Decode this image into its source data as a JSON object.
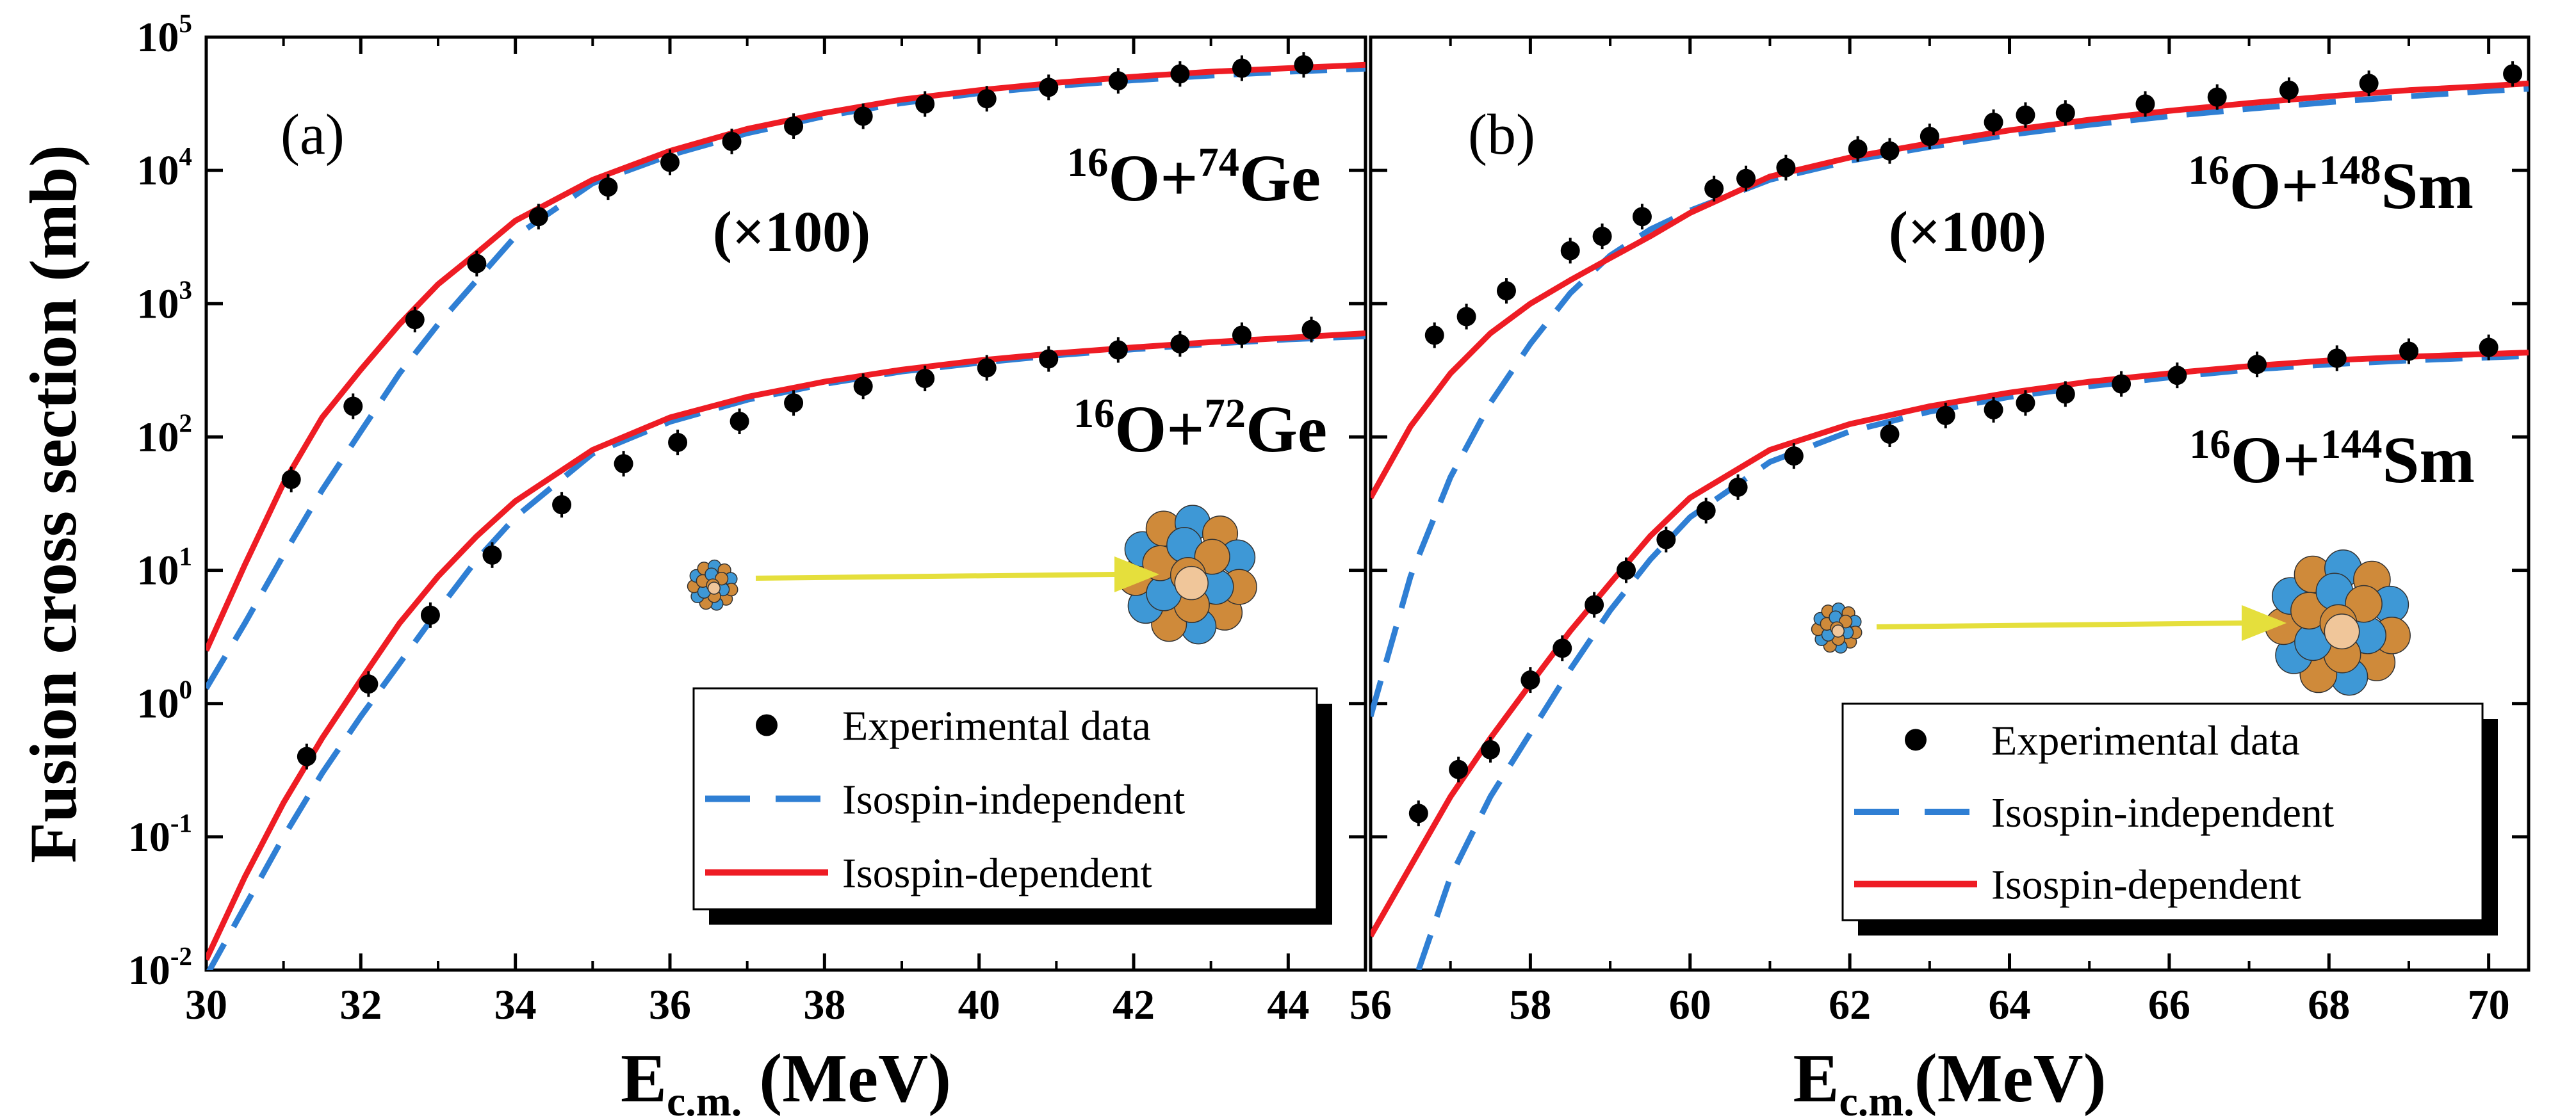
{
  "chart_data": {
    "type": "scatter",
    "ylabel": "Fusion cross section (mb)",
    "yscale": "log",
    "ylim": [
      0.01,
      100000
    ],
    "yticks": [
      {
        "base": "10",
        "exp": "-2"
      },
      {
        "base": "10",
        "exp": "-1"
      },
      {
        "base": "10",
        "exp": "0"
      },
      {
        "base": "10",
        "exp": "1"
      },
      {
        "base": "10",
        "exp": "2"
      },
      {
        "base": "10",
        "exp": "3"
      },
      {
        "base": "10",
        "exp": "4"
      },
      {
        "base": "10",
        "exp": "5"
      }
    ],
    "legend": {
      "experimental": "Experimental data",
      "independent": "Isospin-independent",
      "dependent": "Isospin-dependent"
    },
    "colors": {
      "independent": "#2f7fd4",
      "dependent": "#ee1c24",
      "data": "#000000",
      "arrow": "#e5df3c"
    },
    "panels": [
      {
        "label": "(a)",
        "xlabel_main": "E",
        "xlabel_sub": "c.m.",
        "xlabel_rest": " (MeV)",
        "xlim": [
          30,
          45
        ],
        "xticks": [
          "30",
          "32",
          "34",
          "36",
          "38",
          "40",
          "42",
          "44"
        ],
        "scale_note": "(×100)",
        "legend_position": "bottom-right",
        "reactions": [
          {
            "name_parts": [
              "16",
              "O+",
              "74",
              "Ge"
            ],
            "scaled": true,
            "experimental": {
              "x": [
                31.1,
                31.9,
                32.7,
                33.5,
                34.3,
                35.2,
                36.0,
                36.8,
                37.6,
                38.5,
                39.3,
                40.1,
                40.9,
                41.8,
                42.6,
                43.4,
                44.2
              ],
              "y": [
                48,
                170,
                760,
                2000,
                4500,
                7500,
                11500,
                16500,
                21500,
                25500,
                31500,
                34500,
                42000,
                47000,
                53000,
                58500,
                62000
              ]
            },
            "isospin_independent": {
              "x": [
                30.0,
                30.5,
                31.0,
                31.5,
                32.0,
                32.5,
                33.0,
                33.5,
                34.0,
                35.0,
                36.0,
                37.0,
                38.0,
                39.0,
                40.0,
                41.0,
                42.0,
                43.0,
                44.0,
                45.0
              ],
              "y": [
                1.3,
                4,
                13,
                40,
                110,
                300,
                700,
                1500,
                3200,
                8000,
                13000,
                19000,
                25500,
                32000,
                38000,
                43000,
                47500,
                51500,
                55000,
                58000
              ]
            },
            "isospin_dependent": {
              "x": [
                30.0,
                30.5,
                31.0,
                31.5,
                32.0,
                32.5,
                33.0,
                33.5,
                34.0,
                35.0,
                36.0,
                37.0,
                38.0,
                39.0,
                40.0,
                41.0,
                42.0,
                43.0,
                44.0,
                45.0
              ],
              "y": [
                2.5,
                11,
                45,
                140,
                320,
                700,
                1400,
                2400,
                4200,
                8500,
                14000,
                20500,
                27000,
                34000,
                40000,
                45500,
                50500,
                55000,
                58500,
                62000
              ]
            }
          },
          {
            "name_parts": [
              "16",
              "O+",
              "72",
              "Ge"
            ],
            "scaled": false,
            "experimental": {
              "x": [
                31.3,
                32.1,
                32.9,
                33.7,
                34.6,
                35.4,
                36.1,
                36.9,
                37.6,
                38.5,
                39.3,
                40.1,
                40.9,
                41.8,
                42.6,
                43.4,
                44.3
              ],
              "y": [
                0.4,
                1.4,
                4.6,
                13,
                31,
                63,
                91,
                131,
                180,
                240,
                275,
                330,
                385,
                450,
                500,
                580,
                640
              ]
            },
            "isospin_independent": {
              "x": [
                30.0,
                30.5,
                31.0,
                31.5,
                32.0,
                32.5,
                33.0,
                33.5,
                34.0,
                35.0,
                36.0,
                37.0,
                38.0,
                39.0,
                40.0,
                41.0,
                42.0,
                43.0,
                44.0,
                45.0
              ],
              "y": [
                0.009,
                0.03,
                0.1,
                0.3,
                0.8,
                2,
                5,
                12,
                25,
                75,
                130,
                190,
                250,
                310,
                360,
                410,
                455,
                500,
                540,
                570
              ]
            },
            "isospin_dependent": {
              "x": [
                30.0,
                30.5,
                31.0,
                31.5,
                32.0,
                32.5,
                33.0,
                33.5,
                34.0,
                35.0,
                36.0,
                37.0,
                38.0,
                39.0,
                40.0,
                41.0,
                42.0,
                43.0,
                44.0,
                45.0
              ],
              "y": [
                0.012,
                0.05,
                0.18,
                0.55,
                1.5,
                4,
                9,
                18,
                33,
                80,
                140,
                200,
                260,
                320,
                375,
                425,
                470,
                515,
                555,
                600
              ]
            }
          }
        ]
      },
      {
        "label": "(b)",
        "xlabel_main": "E",
        "xlabel_sub": "c.m.",
        "xlabel_rest": "(MeV)",
        "xlim": [
          56,
          70.5
        ],
        "xticks": [
          "56",
          "58",
          "60",
          "62",
          "64",
          "66",
          "68",
          "70"
        ],
        "scale_note": "(×100)",
        "legend_position": "bottom-right",
        "reactions": [
          {
            "name_parts": [
              "16",
              "O+",
              "148",
              "Sm"
            ],
            "scaled": true,
            "experimental": {
              "x": [
                56.8,
                57.2,
                57.7,
                58.5,
                58.9,
                59.4,
                60.3,
                60.7,
                61.2,
                62.1,
                62.5,
                63.0,
                63.8,
                64.2,
                64.7,
                65.7,
                66.6,
                67.5,
                68.5,
                70.3
              ],
              "y": [
                580,
                800,
                1250,
                2500,
                3200,
                4500,
                7300,
                8700,
                10500,
                14500,
                14000,
                18000,
                23000,
                26000,
                27000,
                31500,
                35500,
                40000,
                45000,
                53000
              ]
            },
            "isospin_independent": {
              "x": [
                56.0,
                56.5,
                57.0,
                57.5,
                58.0,
                58.5,
                59.0,
                59.5,
                60.0,
                61.0,
                62.0,
                63.0,
                64.0,
                65.0,
                66.0,
                67.0,
                68.0,
                69.0,
                70.0,
                70.5
              ],
              "y": [
                0.8,
                9,
                50,
                180,
                500,
                1200,
                2300,
                3600,
                5000,
                8500,
                11800,
                15000,
                18500,
                22000,
                25500,
                29000,
                32500,
                36000,
                39500,
                41000
              ]
            },
            "isospin_dependent": {
              "x": [
                56.0,
                56.5,
                57.0,
                57.5,
                58.0,
                58.5,
                59.0,
                59.5,
                60.0,
                61.0,
                62.0,
                63.0,
                64.0,
                65.0,
                66.0,
                67.0,
                68.0,
                69.0,
                70.0,
                70.5
              ],
              "y": [
                35,
                120,
                300,
                600,
                1000,
                1500,
                2200,
                3200,
                4800,
                9000,
                12500,
                16000,
                20000,
                24000,
                28000,
                32000,
                36000,
                40000,
                43000,
                45000
              ]
            }
          },
          {
            "name_parts": [
              "16",
              "O+",
              "144",
              "Sm"
            ],
            "scaled": false,
            "experimental": {
              "x": [
                56.6,
                57.1,
                57.5,
                58.0,
                58.4,
                58.8,
                59.2,
                59.7,
                60.2,
                60.6,
                61.3,
                62.5,
                63.2,
                63.8,
                64.2,
                64.7,
                65.4,
                66.1,
                67.1,
                68.1,
                69.0,
                70.0
              ],
              "y": [
                0.15,
                0.32,
                0.45,
                1.5,
                2.6,
                5.5,
                10,
                17,
                28,
                42,
                72,
                105,
                145,
                160,
                180,
                210,
                250,
                290,
                350,
                390,
                440,
                470
              ]
            },
            "isospin_independent": {
              "x": [
                56.6,
                57.0,
                57.5,
                58.0,
                58.5,
                59.0,
                59.5,
                60.0,
                61.0,
                62.0,
                63.0,
                64.0,
                65.0,
                66.0,
                67.0,
                68.0,
                69.0,
                70.0,
                70.5
              ],
              "y": [
                0.01,
                0.05,
                0.2,
                0.6,
                1.8,
                5,
                12,
                25,
                65,
                110,
                155,
                200,
                240,
                280,
                320,
                350,
                375,
                395,
                405
              ]
            },
            "isospin_dependent": {
              "x": [
                56.0,
                56.5,
                57.0,
                57.5,
                58.0,
                58.5,
                59.0,
                59.5,
                60.0,
                61.0,
                62.0,
                63.0,
                64.0,
                65.0,
                66.0,
                67.0,
                68.0,
                69.0,
                70.0,
                70.5
              ],
              "y": [
                0.018,
                0.06,
                0.2,
                0.55,
                1.4,
                3.5,
                8,
                18,
                35,
                80,
                125,
                170,
                215,
                260,
                300,
                340,
                375,
                400,
                420,
                430
              ]
            }
          }
        ]
      }
    ]
  }
}
